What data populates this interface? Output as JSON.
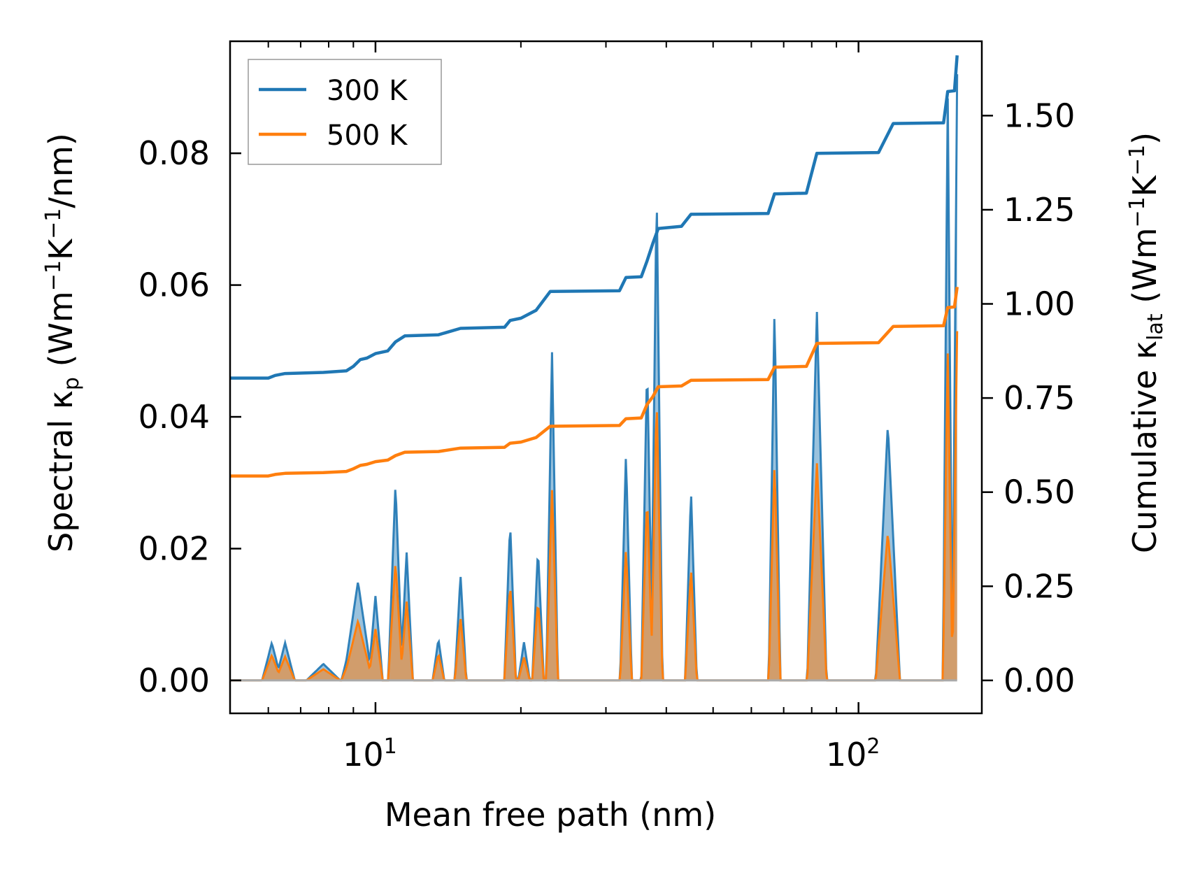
{
  "chart_data": {
    "type": "line",
    "xlabel": "Mean free path (nm)",
    "ylabel_left": {
      "main": "Spectral κ",
      "sub": "p",
      "units_open": " (Wm",
      "exp1": "−1",
      "k": "K",
      "exp2": "−1",
      "units_close": "/nm)"
    },
    "ylabel_right": {
      "main": "Cumulative κ",
      "sub": "lat",
      "units_open": " (Wm",
      "exp1": "−1",
      "k": "K",
      "exp2": "−1",
      "units_close": ")"
    },
    "xscale": "log",
    "xlim": [
      5,
      180
    ],
    "ylim_left": [
      -0.005,
      0.097
    ],
    "ylim_right": [
      -0.0875,
      1.6975
    ],
    "x_ticks": [
      {
        "value": 10,
        "base": "10",
        "exp": "1"
      },
      {
        "value": 100,
        "base": "10",
        "exp": "2"
      }
    ],
    "y_ticks_left": [
      "0.00",
      "0.02",
      "0.04",
      "0.06",
      "0.08"
    ],
    "y_ticks_right": [
      "0.00",
      "0.25",
      "0.50",
      "0.75",
      "1.00",
      "1.25",
      "1.50"
    ],
    "legend": {
      "position": "upper-left",
      "entries": [
        {
          "label": "300 K",
          "color": "#1f77b4"
        },
        {
          "label": "500 K",
          "color": "#ff7f0e"
        }
      ]
    },
    "cumulative_series": [
      {
        "name": "300 K",
        "color": "#1f77b4",
        "axis": "right",
        "points": [
          [
            5.0,
            0.803
          ],
          [
            6.0,
            0.803
          ],
          [
            6.2,
            0.81
          ],
          [
            6.5,
            0.815
          ],
          [
            7.8,
            0.818
          ],
          [
            8.7,
            0.822
          ],
          [
            9.0,
            0.834
          ],
          [
            9.3,
            0.852
          ],
          [
            9.6,
            0.856
          ],
          [
            10.0,
            0.868
          ],
          [
            10.6,
            0.875
          ],
          [
            11.0,
            0.899
          ],
          [
            11.5,
            0.915
          ],
          [
            13.5,
            0.918
          ],
          [
            15.0,
            0.935
          ],
          [
            18.5,
            0.938
          ],
          [
            19.0,
            0.956
          ],
          [
            20.0,
            0.962
          ],
          [
            21.5,
            0.983
          ],
          [
            23.0,
            1.033
          ],
          [
            32.0,
            1.035
          ],
          [
            33.0,
            1.07
          ],
          [
            35.5,
            1.072
          ],
          [
            36.5,
            1.114
          ],
          [
            37.5,
            1.16
          ],
          [
            38.5,
            1.2
          ],
          [
            43.0,
            1.206
          ],
          [
            45.0,
            1.238
          ],
          [
            65.0,
            1.24
          ],
          [
            67.0,
            1.292
          ],
          [
            78.0,
            1.294
          ],
          [
            82.0,
            1.4
          ],
          [
            110.0,
            1.402
          ],
          [
            118.0,
            1.479
          ],
          [
            150.0,
            1.481
          ],
          [
            153.0,
            1.564
          ],
          [
            158.0,
            1.566
          ],
          [
            160.0,
            1.66
          ]
        ]
      },
      {
        "name": "500 K",
        "color": "#ff7f0e",
        "axis": "right",
        "points": [
          [
            5.0,
            0.543
          ],
          [
            6.0,
            0.543
          ],
          [
            6.2,
            0.547
          ],
          [
            6.5,
            0.55
          ],
          [
            7.8,
            0.552
          ],
          [
            8.7,
            0.555
          ],
          [
            9.0,
            0.562
          ],
          [
            9.3,
            0.571
          ],
          [
            9.6,
            0.574
          ],
          [
            10.0,
            0.581
          ],
          [
            10.6,
            0.585
          ],
          [
            11.0,
            0.597
          ],
          [
            11.5,
            0.606
          ],
          [
            13.5,
            0.608
          ],
          [
            15.0,
            0.617
          ],
          [
            18.5,
            0.619
          ],
          [
            19.0,
            0.63
          ],
          [
            20.0,
            0.633
          ],
          [
            21.5,
            0.645
          ],
          [
            23.0,
            0.675
          ],
          [
            32.0,
            0.677
          ],
          [
            33.0,
            0.695
          ],
          [
            35.5,
            0.697
          ],
          [
            36.5,
            0.733
          ],
          [
            37.5,
            0.753
          ],
          [
            38.5,
            0.78
          ],
          [
            43.0,
            0.782
          ],
          [
            45.0,
            0.797
          ],
          [
            65.0,
            0.799
          ],
          [
            67.0,
            0.832
          ],
          [
            78.0,
            0.834
          ],
          [
            82.0,
            0.895
          ],
          [
            110.0,
            0.897
          ],
          [
            118.0,
            0.94
          ],
          [
            150.0,
            0.942
          ],
          [
            153.0,
            0.99
          ],
          [
            158.0,
            0.992
          ],
          [
            160.0,
            1.045
          ]
        ]
      }
    ],
    "spectral_peaks": [
      {
        "x": 6.1,
        "y300": 0.0057,
        "y500": 0.0038,
        "w": 0.02
      },
      {
        "x": 6.5,
        "y300": 0.0057,
        "y500": 0.0036,
        "w": 0.02
      },
      {
        "x": 7.8,
        "y300": 0.0025,
        "y500": 0.0017,
        "w": 0.035
      },
      {
        "x": 8.8,
        "y300": 0.0045,
        "y500": 0.0028,
        "w": 0.015
      },
      {
        "x": 9.2,
        "y300": 0.015,
        "y500": 0.009,
        "w": 0.03
      },
      {
        "x": 10.0,
        "y300": 0.0128,
        "y500": 0.0078,
        "w": 0.015
      },
      {
        "x": 11.0,
        "y300": 0.03,
        "y500": 0.018,
        "w": 0.015
      },
      {
        "x": 11.6,
        "y300": 0.0195,
        "y500": 0.012,
        "w": 0.013
      },
      {
        "x": 13.5,
        "y300": 0.0063,
        "y500": 0.004,
        "w": 0.012
      },
      {
        "x": 15.0,
        "y300": 0.016,
        "y500": 0.0095,
        "w": 0.012
      },
      {
        "x": 19.0,
        "y300": 0.024,
        "y500": 0.0145,
        "w": 0.012
      },
      {
        "x": 20.3,
        "y300": 0.0058,
        "y500": 0.0035,
        "w": 0.012
      },
      {
        "x": 21.7,
        "y300": 0.02,
        "y500": 0.012,
        "w": 0.012
      },
      {
        "x": 23.2,
        "y300": 0.05,
        "y500": 0.029,
        "w": 0.012
      },
      {
        "x": 33.0,
        "y300": 0.0345,
        "y500": 0.02,
        "w": 0.012
      },
      {
        "x": 36.5,
        "y300": 0.0485,
        "y500": 0.028,
        "w": 0.012
      },
      {
        "x": 38.2,
        "y300": 0.075,
        "y500": 0.043,
        "w": 0.012
      },
      {
        "x": 45.0,
        "y300": 0.029,
        "y500": 0.017,
        "w": 0.012
      },
      {
        "x": 67.0,
        "y300": 0.0567,
        "y500": 0.033,
        "w": 0.012
      },
      {
        "x": 82.0,
        "y300": 0.056,
        "y500": 0.033,
        "w": 0.02
      },
      {
        "x": 115.0,
        "y300": 0.039,
        "y500": 0.0225,
        "w": 0.025
      },
      {
        "x": 153.0,
        "y300": 0.089,
        "y500": 0.05,
        "w": 0.01
      },
      {
        "x": 160.0,
        "y300": 0.092,
        "y500": 0.053,
        "w": 0.01
      }
    ]
  }
}
